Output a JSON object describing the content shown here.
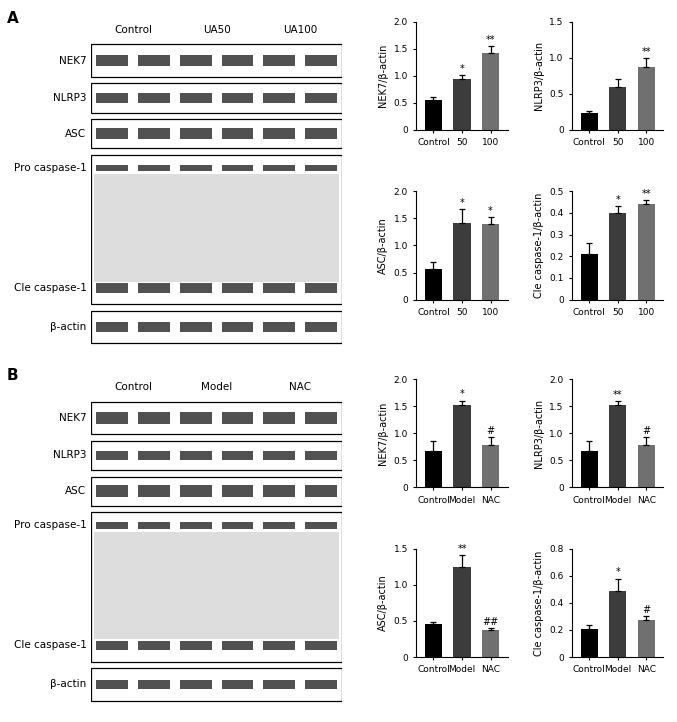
{
  "panels": [
    {
      "label": "A",
      "blot": {
        "lanes": [
          "Control",
          "UA50",
          "UA100"
        ],
        "proteins": [
          "NEK7",
          "NLRP3",
          "ASC",
          "Pro caspase-1",
          "Cle caspase-1",
          "β-actin"
        ]
      }
    },
    {
      "label": "B",
      "blot": {
        "lanes": [
          "Control",
          "Model",
          "NAC"
        ],
        "proteins": [
          "NEK7",
          "NLRP3",
          "ASC",
          "Pro caspase-1",
          "Cle caspase-1",
          "β-actin"
        ]
      }
    }
  ],
  "chart_data": [
    {
      "type": "bar",
      "y_label": "NEK7/β-actin",
      "categories": [
        "Control",
        "50",
        "100"
      ],
      "values": [
        0.55,
        0.95,
        1.42
      ],
      "errors": [
        0.06,
        0.06,
        0.13
      ],
      "colors": [
        "#000000",
        "#3c3c3c",
        "#707070"
      ],
      "ylim": [
        0,
        2.0
      ],
      "yticks": [
        0,
        0.5,
        1.0,
        1.5,
        2.0
      ],
      "annotations": [
        {
          "category": "50",
          "text": "*"
        },
        {
          "category": "100",
          "text": "**"
        }
      ]
    },
    {
      "type": "bar",
      "y_label": "NLRP3/β-actin",
      "categories": [
        "Control",
        "50",
        "100"
      ],
      "values": [
        0.23,
        0.59,
        0.87
      ],
      "errors": [
        0.03,
        0.12,
        0.12
      ],
      "colors": [
        "#000000",
        "#3c3c3c",
        "#707070"
      ],
      "ylim": [
        0,
        1.5
      ],
      "yticks": [
        0,
        0.5,
        1.0,
        1.5
      ],
      "annotations": [
        {
          "category": "100",
          "text": "**"
        }
      ]
    },
    {
      "type": "bar",
      "y_label": "ASC/β-actin",
      "categories": [
        "Control",
        "50",
        "100"
      ],
      "values": [
        0.56,
        1.42,
        1.4
      ],
      "errors": [
        0.13,
        0.25,
        0.12
      ],
      "colors": [
        "#000000",
        "#3c3c3c",
        "#707070"
      ],
      "ylim": [
        0,
        2.0
      ],
      "yticks": [
        0,
        0.5,
        1.0,
        1.5,
        2.0
      ],
      "annotations": [
        {
          "category": "50",
          "text": "*"
        },
        {
          "category": "100",
          "text": "*"
        }
      ]
    },
    {
      "type": "bar",
      "y_label": "Cle caspase-1/β-actin",
      "categories": [
        "Control",
        "50",
        "100"
      ],
      "values": [
        0.21,
        0.4,
        0.44
      ],
      "errors": [
        0.05,
        0.03,
        0.02
      ],
      "colors": [
        "#000000",
        "#3c3c3c",
        "#707070"
      ],
      "ylim": [
        0,
        0.5
      ],
      "yticks": [
        0,
        0.1,
        0.2,
        0.3,
        0.4,
        0.5
      ],
      "annotations": [
        {
          "category": "50",
          "text": "*"
        },
        {
          "category": "100",
          "text": "**"
        }
      ]
    },
    {
      "type": "bar",
      "y_label": "NEK7/β-actin",
      "categories": [
        "Control",
        "Model",
        "NAC"
      ],
      "values": [
        0.68,
        1.53,
        0.78
      ],
      "errors": [
        0.17,
        0.07,
        0.15
      ],
      "colors": [
        "#000000",
        "#3c3c3c",
        "#707070"
      ],
      "ylim": [
        0,
        2.0
      ],
      "yticks": [
        0,
        0.5,
        1.0,
        1.5,
        2.0
      ],
      "annotations": [
        {
          "category": "Model",
          "text": "*"
        },
        {
          "category": "NAC",
          "text": "#"
        }
      ]
    },
    {
      "type": "bar",
      "y_label": "NLRP3/β-actin",
      "categories": [
        "Control",
        "Model",
        "NAC"
      ],
      "values": [
        0.68,
        1.53,
        0.78
      ],
      "errors": [
        0.17,
        0.06,
        0.15
      ],
      "colors": [
        "#000000",
        "#3c3c3c",
        "#707070"
      ],
      "ylim": [
        0,
        2.0
      ],
      "yticks": [
        0,
        0.5,
        1.0,
        1.5,
        2.0
      ],
      "annotations": [
        {
          "category": "Model",
          "text": "**"
        },
        {
          "category": "NAC",
          "text": "#"
        }
      ]
    },
    {
      "type": "bar",
      "y_label": "ASC/β-actin",
      "categories": [
        "Control",
        "Model",
        "NAC"
      ],
      "values": [
        0.46,
        1.24,
        0.37
      ],
      "errors": [
        0.03,
        0.17,
        0.03
      ],
      "colors": [
        "#000000",
        "#3c3c3c",
        "#707070"
      ],
      "ylim": [
        0,
        1.5
      ],
      "yticks": [
        0,
        0.5,
        1.0,
        1.5
      ],
      "annotations": [
        {
          "category": "Model",
          "text": "**"
        },
        {
          "category": "NAC",
          "text": "##"
        }
      ]
    },
    {
      "type": "bar",
      "y_label": "Cle caspase-1/β-actin",
      "categories": [
        "Control",
        "Model",
        "NAC"
      ],
      "values": [
        0.21,
        0.49,
        0.27
      ],
      "errors": [
        0.03,
        0.09,
        0.03
      ],
      "colors": [
        "#000000",
        "#3c3c3c",
        "#707070"
      ],
      "ylim": [
        0,
        0.8
      ],
      "yticks": [
        0,
        0.2,
        0.4,
        0.6,
        0.8
      ],
      "annotations": [
        {
          "category": "Model",
          "text": "*"
        },
        {
          "category": "NAC",
          "text": "#"
        }
      ]
    }
  ]
}
